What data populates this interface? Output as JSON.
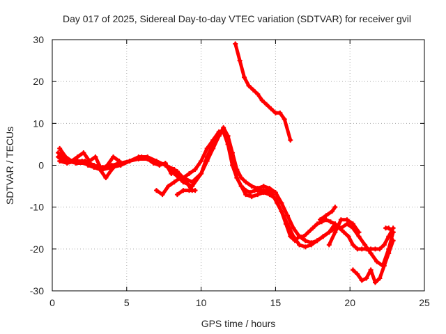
{
  "chart_data": {
    "type": "scatter",
    "title": "Day 017 of 2025, Sidereal Day-to-day VTEC variation (SDTVAR) for receiver gvil",
    "xlabel": "GPS time / hours",
    "ylabel": "SDTVAR / TECUs",
    "xlim": [
      0,
      25
    ],
    "ylim": [
      -30,
      30
    ],
    "xticks": [
      0,
      5,
      10,
      15,
      20,
      25
    ],
    "yticks": [
      -30,
      -20,
      -10,
      0,
      10,
      20,
      30
    ],
    "grid": true,
    "marker": "cross",
    "color": "#ff0000",
    "series": [
      {
        "x": [
          0.4,
          0.8,
          1.2,
          1.6,
          2.0,
          2.4,
          2.8,
          3.2,
          3.6,
          4.0,
          4.4,
          4.8,
          5.2,
          5.6,
          6.0,
          6.4,
          6.8,
          7.2,
          7.6,
          8.0,
          8.4,
          8.8,
          9.2,
          9.6,
          10.0,
          10.4,
          10.8,
          11.2,
          11.5,
          11.8,
          12.1,
          12.4,
          12.7,
          13.0,
          13.3,
          13.6,
          13.9,
          14.2,
          14.5,
          14.8,
          15.1,
          15.4,
          15.7,
          16.0,
          16.3,
          16.6,
          16.9,
          17.2,
          17.5,
          17.8,
          18.1,
          18.4,
          18.7,
          19.0,
          19.3,
          19.6,
          19.9,
          20.2,
          20.5,
          20.8,
          21.1,
          21.4,
          21.7,
          22.0,
          22.3,
          22.6,
          22.9
        ],
        "y": [
          3,
          1.5,
          1,
          0.5,
          1,
          0,
          -0.5,
          -1,
          -3,
          -1,
          0.5,
          0.5,
          1,
          1.5,
          2,
          1.5,
          0.5,
          0,
          0.5,
          -2,
          -1.5,
          -3,
          -2,
          -1,
          1,
          4,
          6,
          8,
          8,
          5,
          0,
          -3,
          -5,
          -6,
          -6.5,
          -6,
          -6,
          -6,
          -6,
          -7,
          -9,
          -11,
          -14,
          -17,
          -18,
          -17,
          -17,
          -16,
          -15,
          -14,
          -13.5,
          -13,
          -13.5,
          -14,
          -15,
          -16,
          -17,
          -19,
          -20,
          -20,
          -20,
          -20,
          -20,
          -20,
          -19,
          -17,
          -15
        ]
      },
      {
        "x": [
          0.4,
          1.0,
          1.6,
          2.2,
          2.8,
          3.4,
          4.0,
          4.6,
          5.2,
          5.8,
          6.4,
          7.0,
          7.6,
          8.2,
          8.8,
          9.4,
          10.0,
          10.4,
          10.8,
          11.2,
          11.5,
          11.8,
          12.1,
          12.4,
          12.7,
          13.0,
          13.4,
          13.8,
          14.2,
          14.6,
          15.0,
          15.4,
          15.8,
          16.2,
          16.6,
          17.0,
          17.4,
          17.8,
          18.2,
          18.6,
          19.0,
          19.4,
          19.8,
          20.2,
          20.6,
          21.0,
          21.4,
          21.8,
          22.2,
          22.6,
          22.9
        ],
        "y": [
          2,
          1,
          0.5,
          0.5,
          0,
          -0.5,
          0,
          0.5,
          1,
          1.5,
          1.5,
          1,
          0,
          -1,
          -3,
          -4,
          -2,
          1,
          4,
          7,
          9,
          7,
          3,
          -1,
          -3,
          -4,
          -5,
          -5.5,
          -5,
          -5.5,
          -6.5,
          -9,
          -12,
          -15,
          -17,
          -18,
          -18.5,
          -18,
          -17,
          -16,
          -15,
          -15,
          -14,
          -15,
          -17,
          -19,
          -21,
          -23,
          -24,
          -20,
          -16
        ]
      },
      {
        "x": [
          0.5,
          1.0,
          1.6,
          2.2,
          2.8,
          3.4,
          4.0,
          4.6,
          5.2,
          5.8,
          6.4,
          7.0,
          7.6,
          8.2,
          8.8,
          9.4,
          10.0,
          10.4,
          10.8,
          11.2,
          11.5,
          11.8,
          12.1,
          12.4,
          12.7,
          13.0,
          13.4,
          13.8,
          14.2,
          14.6,
          15.0,
          15.4,
          15.8,
          16.2,
          16.6,
          17.0,
          17.4,
          17.8,
          18.2,
          18.6,
          19.0
        ],
        "y": [
          1,
          0.5,
          1,
          1,
          0,
          -1,
          -0.5,
          0,
          1,
          2,
          2,
          1,
          0,
          -2,
          -4,
          -5,
          -2,
          2,
          5,
          7,
          8.5,
          7,
          2,
          -3,
          -5,
          -7,
          -7.5,
          -7,
          -6.5,
          -7,
          -8,
          -11,
          -14,
          -17,
          -19,
          -19.5,
          -19,
          -18,
          -17,
          -16,
          -14
        ]
      },
      {
        "x": [
          7.0,
          7.4,
          7.8,
          8.2,
          8.6,
          9.0,
          9.4
        ],
        "y": [
          -6,
          -7,
          -5,
          -4,
          -3,
          -4,
          -6
        ]
      },
      {
        "x": [
          8.4,
          8.8,
          9.2,
          9.6
        ],
        "y": [
          -7,
          -6,
          -6,
          -6
        ]
      },
      {
        "x": [
          0.5,
          0.9,
          1.3,
          1.7,
          2.1,
          2.5,
          2.9,
          3.3,
          3.7,
          4.1,
          4.5
        ],
        "y": [
          4,
          2,
          1,
          2,
          3,
          1,
          2,
          -1,
          0,
          2,
          1
        ]
      },
      {
        "x": [
          12.3,
          12.6,
          12.9,
          13.2,
          13.5,
          13.8,
          14.1,
          14.4,
          14.7,
          15.0,
          15.3,
          15.6,
          16.0
        ],
        "y": [
          29,
          25,
          21,
          19,
          18,
          17,
          15.5,
          14.5,
          13.5,
          12.5,
          12.5,
          11,
          6
        ]
      },
      {
        "x": [
          18.0,
          18.4,
          18.8,
          19.0
        ],
        "y": [
          -13,
          -12,
          -11,
          -10
        ]
      },
      {
        "x": [
          18.6,
          19.0,
          19.4,
          19.8,
          20.2,
          20.6
        ],
        "y": [
          -19,
          -16,
          -13,
          -13,
          -14,
          -16
        ]
      },
      {
        "x": [
          20.2,
          20.5,
          20.8,
          21.1,
          21.4,
          21.7,
          22.0,
          22.3,
          22.6,
          22.9
        ],
        "y": [
          -25,
          -26,
          -27.5,
          -27,
          -25,
          -28,
          -27,
          -24,
          -21,
          -18
        ]
      },
      {
        "x": [
          22.4,
          22.6,
          22.8,
          22.9
        ],
        "y": [
          -15,
          -15,
          -15.5,
          -16
        ]
      }
    ]
  }
}
